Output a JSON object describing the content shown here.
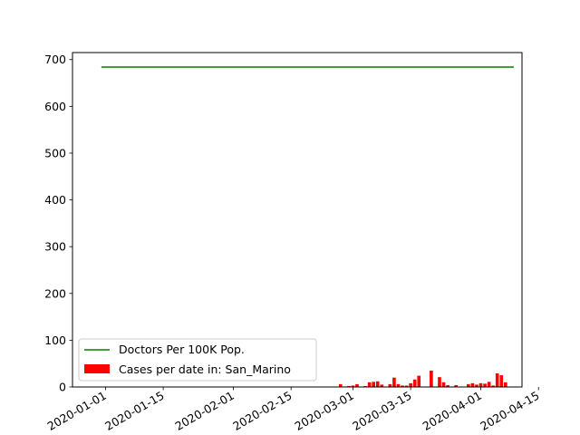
{
  "chart_data": {
    "type": "bar+line",
    "xaxis_type": "date",
    "xlim": [
      "2019-12-24",
      "2020-04-11"
    ],
    "ylim": [
      0,
      715
    ],
    "x_ticks": [
      "2020-01-01",
      "2020-01-15",
      "2020-02-01",
      "2020-02-15",
      "2020-03-01",
      "2020-03-15",
      "2020-04-01",
      "2020-04-15"
    ],
    "y_ticks": [
      0,
      100,
      200,
      300,
      400,
      500,
      600,
      700
    ],
    "grid": false,
    "legend_placement": "lower-left",
    "line_series": {
      "name": "Doctors Per 100K Pop.",
      "color": "#008000",
      "x": [
        "2019-12-31",
        "2020-04-09"
      ],
      "y": [
        684,
        684
      ]
    },
    "bar_series": {
      "name": "Cases per date in: San_Marino",
      "color": "#ff0000",
      "dates": [
        "2020-02-27",
        "2020-02-28",
        "2020-02-29",
        "2020-03-01",
        "2020-03-02",
        "2020-03-03",
        "2020-03-04",
        "2020-03-05",
        "2020-03-06",
        "2020-03-07",
        "2020-03-08",
        "2020-03-09",
        "2020-03-10",
        "2020-03-11",
        "2020-03-12",
        "2020-03-13",
        "2020-03-14",
        "2020-03-15",
        "2020-03-16",
        "2020-03-17",
        "2020-03-18",
        "2020-03-19",
        "2020-03-20",
        "2020-03-21",
        "2020-03-22",
        "2020-03-23",
        "2020-03-24",
        "2020-03-25",
        "2020-03-26",
        "2020-03-27",
        "2020-03-28",
        "2020-03-29",
        "2020-03-30",
        "2020-03-31",
        "2020-04-01",
        "2020-04-02",
        "2020-04-03",
        "2020-04-04",
        "2020-04-05",
        "2020-04-06",
        "2020-04-07"
      ],
      "values": [
        6,
        0,
        2,
        3,
        6,
        0,
        2,
        10,
        11,
        12,
        5,
        1,
        6,
        20,
        6,
        3,
        3,
        8,
        16,
        24,
        0,
        1,
        35,
        0,
        21,
        10,
        4,
        0,
        4,
        0,
        0,
        6,
        8,
        5,
        8,
        7,
        11,
        3,
        29,
        25,
        10
      ]
    }
  }
}
